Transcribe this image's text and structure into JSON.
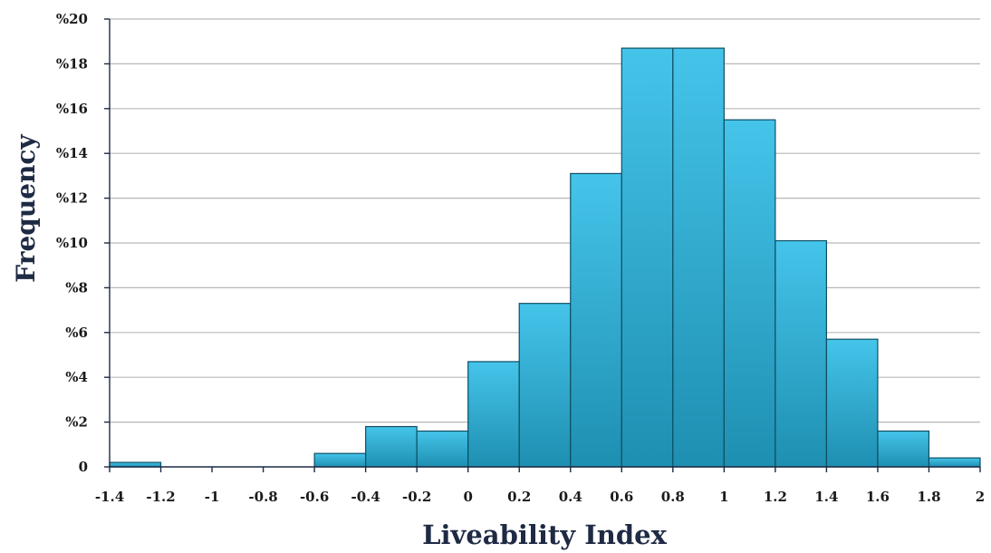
{
  "chart_data": {
    "type": "bar",
    "title": "",
    "xlabel": "Liveability Index",
    "ylabel": "Frequency",
    "bins": [
      {
        "x0": -1.4,
        "x1": -1.2,
        "value": 0.2
      },
      {
        "x0": -1.2,
        "x1": -1.0,
        "value": 0
      },
      {
        "x0": -1.0,
        "x1": -0.8,
        "value": 0
      },
      {
        "x0": -0.8,
        "x1": -0.6,
        "value": 0
      },
      {
        "x0": -0.6,
        "x1": -0.4,
        "value": 0.6
      },
      {
        "x0": -0.4,
        "x1": -0.2,
        "value": 1.8
      },
      {
        "x0": -0.2,
        "x1": 0.0,
        "value": 1.6
      },
      {
        "x0": 0.0,
        "x1": 0.2,
        "value": 4.7
      },
      {
        "x0": 0.2,
        "x1": 0.4,
        "value": 7.3
      },
      {
        "x0": 0.4,
        "x1": 0.6,
        "value": 13.1
      },
      {
        "x0": 0.6,
        "x1": 0.8,
        "value": 18.7
      },
      {
        "x0": 0.8,
        "x1": 1.0,
        "value": 18.7
      },
      {
        "x0": 1.0,
        "x1": 1.2,
        "value": 15.5
      },
      {
        "x0": 1.2,
        "x1": 1.4,
        "value": 10.1
      },
      {
        "x0": 1.4,
        "x1": 1.6,
        "value": 5.7
      },
      {
        "x0": 1.6,
        "x1": 1.8,
        "value": 1.6
      },
      {
        "x0": 1.8,
        "x1": 2.0,
        "value": 0.4
      }
    ],
    "xlim": [
      -1.4,
      2.0
    ],
    "ylim": [
      0,
      20
    ],
    "x_ticks": [
      {
        "value": -1.4,
        "label": "-1.4"
      },
      {
        "value": -1.2,
        "label": "-1.2"
      },
      {
        "value": -1.0,
        "label": "-1"
      },
      {
        "value": -0.8,
        "label": "-0.8"
      },
      {
        "value": -0.6,
        "label": "-0.6"
      },
      {
        "value": -0.4,
        "label": "-0.4"
      },
      {
        "value": -0.2,
        "label": "-0.2"
      },
      {
        "value": 0.0,
        "label": "0"
      },
      {
        "value": 0.2,
        "label": "0.2"
      },
      {
        "value": 0.4,
        "label": "0.4"
      },
      {
        "value": 0.6,
        "label": "0.6"
      },
      {
        "value": 0.8,
        "label": "0.8"
      },
      {
        "value": 1.0,
        "label": "1"
      },
      {
        "value": 1.2,
        "label": "1.2"
      },
      {
        "value": 1.4,
        "label": "1.4"
      },
      {
        "value": 1.6,
        "label": "1.6"
      },
      {
        "value": 1.8,
        "label": "1.8"
      },
      {
        "value": 2.0,
        "label": "2"
      }
    ],
    "y_ticks": [
      {
        "value": 0,
        "label": "0"
      },
      {
        "value": 2,
        "label": "%2"
      },
      {
        "value": 4,
        "label": "%4"
      },
      {
        "value": 6,
        "label": "%6"
      },
      {
        "value": 8,
        "label": "%8"
      },
      {
        "value": 10,
        "label": "%10"
      },
      {
        "value": 12,
        "label": "%12"
      },
      {
        "value": 14,
        "label": "%14"
      },
      {
        "value": 16,
        "label": "%16"
      },
      {
        "value": 18,
        "label": "%18"
      },
      {
        "value": 20,
        "label": "%20"
      }
    ],
    "grid": true,
    "legend": "none",
    "colors": {
      "bar_top": "#45c4ea",
      "bar_bottom": "#1e8fb1",
      "bar_stroke": "#0f4f63",
      "grid": "#b8b8b8",
      "axis": "#1f2a44"
    }
  }
}
